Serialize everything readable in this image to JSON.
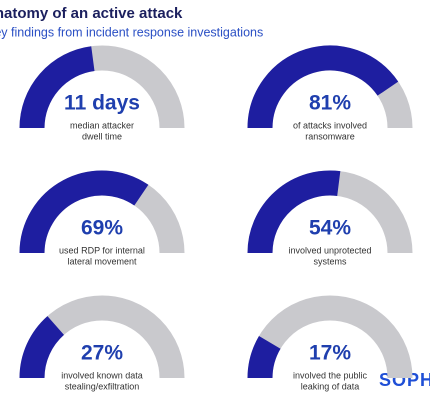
{
  "title": "Anatomy of an active attack",
  "subtitle": "Key findings from incident response investigations",
  "brand": "SOPHOS",
  "chart_data": [
    {
      "type": "gauge",
      "value": 11,
      "value_label": "11 days",
      "range": [
        0,
        24
      ],
      "caption": [
        "median attacker",
        "dwell time"
      ]
    },
    {
      "type": "gauge",
      "value": 81,
      "value_label": "81%",
      "range": [
        0,
        100
      ],
      "caption": [
        "of attacks involved",
        "ransomware"
      ]
    },
    {
      "type": "gauge",
      "value": 69,
      "value_label": "69%",
      "range": [
        0,
        100
      ],
      "caption": [
        "used RDP for internal",
        "lateral movement"
      ]
    },
    {
      "type": "gauge",
      "value": 54,
      "value_label": "54%",
      "range": [
        0,
        100
      ],
      "caption": [
        "involved unprotected",
        "systems"
      ]
    },
    {
      "type": "gauge",
      "value": 27,
      "value_label": "27%",
      "range": [
        0,
        100
      ],
      "caption": [
        "involved known data",
        "stealing/exfiltration"
      ]
    },
    {
      "type": "gauge",
      "value": 17,
      "value_label": "17%",
      "range": [
        0,
        100
      ],
      "caption": [
        "involved the public",
        "leaking of data"
      ]
    }
  ]
}
